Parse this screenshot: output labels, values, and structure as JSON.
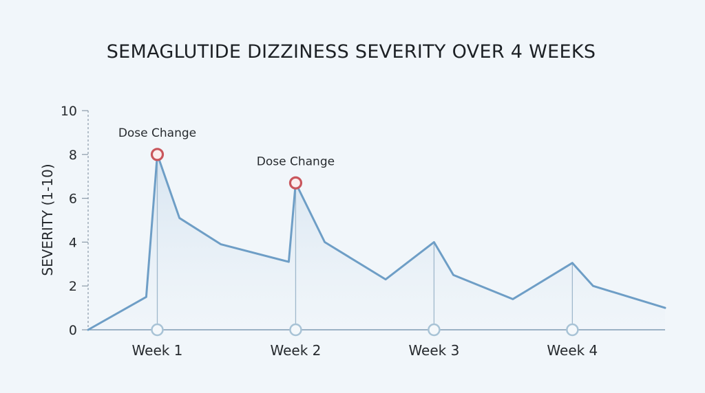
{
  "chart_data": {
    "type": "area",
    "title": "SEMAGLUTIDE DIZZINESS SEVERITY OVER 4 WEEKS",
    "xlabel": "",
    "ylabel": "SEVERITY (1-10)",
    "ylim": [
      0,
      10
    ],
    "yticks": [
      "0",
      "2",
      "4",
      "6",
      "8",
      "10"
    ],
    "xlim": [
      0,
      4.17
    ],
    "x_tick_labels": [
      {
        "x": 0.5,
        "label": "Week 1"
      },
      {
        "x": 1.5,
        "label": "Week 2"
      },
      {
        "x": 2.5,
        "label": "Week 3"
      },
      {
        "x": 3.5,
        "label": "Week 4"
      }
    ],
    "series": [
      {
        "x": [
          0,
          0.42,
          0.5,
          0.66,
          0.96,
          1.45,
          1.5,
          1.71,
          2.15,
          2.5,
          2.64,
          3.07,
          3.5,
          3.65,
          4.17
        ],
        "y": [
          0,
          1.5,
          8.0,
          5.1,
          3.9,
          3.1,
          6.7,
          4.0,
          2.3,
          4.0,
          2.5,
          1.4,
          3.05,
          2.0,
          1.0
        ]
      }
    ],
    "annotations": [
      {
        "x": 0.5,
        "y": 8.0,
        "text": "Dose Change"
      },
      {
        "x": 1.5,
        "y": 6.7,
        "text": "Dose Change"
      }
    ],
    "colors": {
      "line": "#6e9ec6",
      "fill": "#dde9f3",
      "marker": "#c9565c",
      "week_marker": "#a8c3d6",
      "axis": "#8a9aa8"
    },
    "grid": false
  }
}
